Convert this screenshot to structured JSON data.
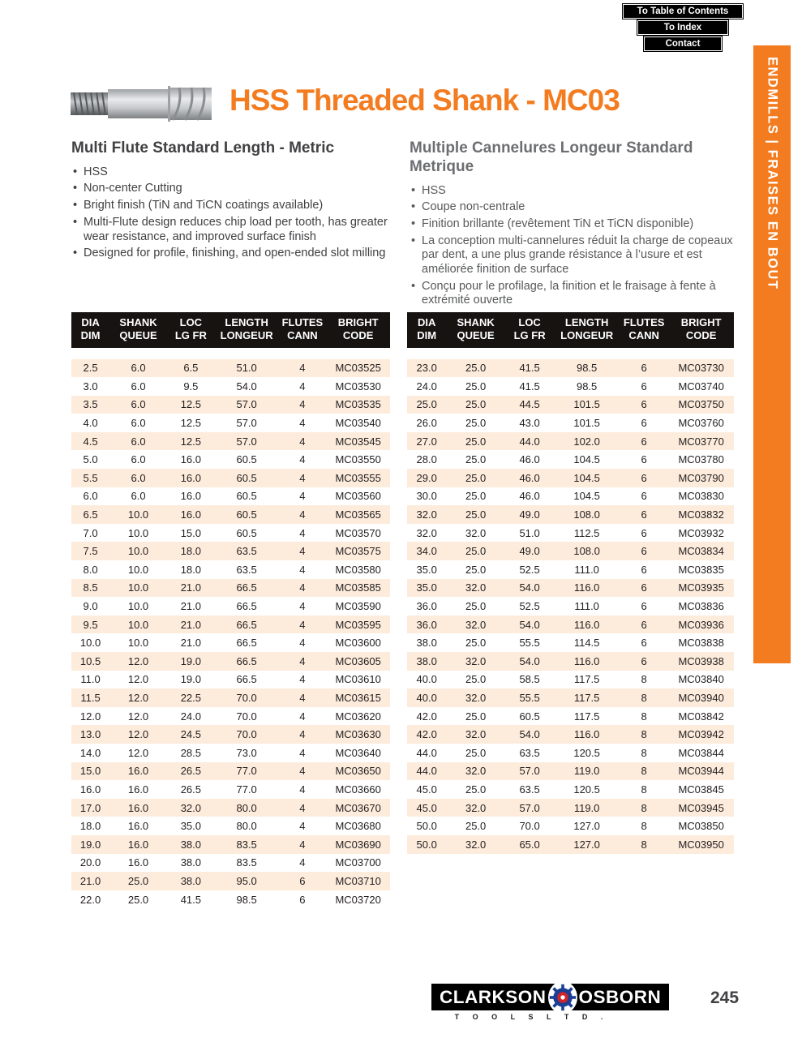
{
  "nav": {
    "buttons": [
      "To Table of Contents",
      "To Index",
      "Contact"
    ]
  },
  "sidebar": {
    "label": "ENDMILLS | FRAISES EN BOUT",
    "color": "#f47c20"
  },
  "header": {
    "title": "HSS Threaded Shank - MC03"
  },
  "sections": {
    "english": {
      "heading": "Multi Flute Standard Length - Metric",
      "bullets": [
        "HSS",
        "Non-center Cutting",
        "Bright finish (TiN and TiCN coatings available)",
        "Multi-Flute design reduces chip load per tooth, has greater wear resistance, and improved surface finish",
        "Designed for profile, finishing, and open-ended slot milling"
      ]
    },
    "french": {
      "heading": "Multiple Cannelures Longeur Standard Metrique",
      "bullets": [
        "HSS",
        "Coupe non-centrale",
        "Finition brillante (revêtement TiN et TiCN disponible)",
        "La conception multi-cannelures réduit la charge de copeaux par dent, a une plus grande résistance à l’usure et est améliorée finition de surface",
        "Conçu pour le profilage, la finition et le fraisage à fente à extrémité ouverte"
      ]
    }
  },
  "table": {
    "headers": [
      [
        "DIA",
        "DIM"
      ],
      [
        "SHANK",
        "QUEUE"
      ],
      [
        "LOC",
        "LG FR"
      ],
      [
        "LENGTH",
        "LONGEUR"
      ],
      [
        "FLUTES",
        "CANN"
      ],
      [
        "BRIGHT",
        "CODE"
      ]
    ],
    "left_rows": [
      [
        "2.5",
        "6.0",
        "6.5",
        "51.0",
        "4",
        "MC03525"
      ],
      [
        "3.0",
        "6.0",
        "9.5",
        "54.0",
        "4",
        "MC03530"
      ],
      [
        "3.5",
        "6.0",
        "12.5",
        "57.0",
        "4",
        "MC03535"
      ],
      [
        "4.0",
        "6.0",
        "12.5",
        "57.0",
        "4",
        "MC03540"
      ],
      [
        "4.5",
        "6.0",
        "12.5",
        "57.0",
        "4",
        "MC03545"
      ],
      [
        "5.0",
        "6.0",
        "16.0",
        "60.5",
        "4",
        "MC03550"
      ],
      [
        "5.5",
        "6.0",
        "16.0",
        "60.5",
        "4",
        "MC03555"
      ],
      [
        "6.0",
        "6.0",
        "16.0",
        "60.5",
        "4",
        "MC03560"
      ],
      [
        "6.5",
        "10.0",
        "16.0",
        "60.5",
        "4",
        "MC03565"
      ],
      [
        "7.0",
        "10.0",
        "15.0",
        "60.5",
        "4",
        "MC03570"
      ],
      [
        "7.5",
        "10.0",
        "18.0",
        "63.5",
        "4",
        "MC03575"
      ],
      [
        "8.0",
        "10.0",
        "18.0",
        "63.5",
        "4",
        "MC03580"
      ],
      [
        "8.5",
        "10.0",
        "21.0",
        "66.5",
        "4",
        "MC03585"
      ],
      [
        "9.0",
        "10.0",
        "21.0",
        "66.5",
        "4",
        "MC03590"
      ],
      [
        "9.5",
        "10.0",
        "21.0",
        "66.5",
        "4",
        "MC03595"
      ],
      [
        "10.0",
        "10.0",
        "21.0",
        "66.5",
        "4",
        "MC03600"
      ],
      [
        "10.5",
        "12.0",
        "19.0",
        "66.5",
        "4",
        "MC03605"
      ],
      [
        "11.0",
        "12.0",
        "19.0",
        "66.5",
        "4",
        "MC03610"
      ],
      [
        "11.5",
        "12.0",
        "22.5",
        "70.0",
        "4",
        "MC03615"
      ],
      [
        "12.0",
        "12.0",
        "24.0",
        "70.0",
        "4",
        "MC03620"
      ],
      [
        "13.0",
        "12.0",
        "24.5",
        "70.0",
        "4",
        "MC03630"
      ],
      [
        "14.0",
        "12.0",
        "28.5",
        "73.0",
        "4",
        "MC03640"
      ],
      [
        "15.0",
        "16.0",
        "26.5",
        "77.0",
        "4",
        "MC03650"
      ],
      [
        "16.0",
        "16.0",
        "26.5",
        "77.0",
        "4",
        "MC03660"
      ],
      [
        "17.0",
        "16.0",
        "32.0",
        "80.0",
        "4",
        "MC03670"
      ],
      [
        "18.0",
        "16.0",
        "35.0",
        "80.0",
        "4",
        "MC03680"
      ],
      [
        "19.0",
        "16.0",
        "38.0",
        "83.5",
        "4",
        "MC03690"
      ],
      [
        "20.0",
        "16.0",
        "38.0",
        "83.5",
        "4",
        "MC03700"
      ],
      [
        "21.0",
        "25.0",
        "38.0",
        "95.0",
        "6",
        "MC03710"
      ],
      [
        "22.0",
        "25.0",
        "41.5",
        "98.5",
        "6",
        "MC03720"
      ]
    ],
    "right_rows": [
      [
        "23.0",
        "25.0",
        "41.5",
        "98.5",
        "6",
        "MC03730"
      ],
      [
        "24.0",
        "25.0",
        "41.5",
        "98.5",
        "6",
        "MC03740"
      ],
      [
        "25.0",
        "25.0",
        "44.5",
        "101.5",
        "6",
        "MC03750"
      ],
      [
        "26.0",
        "25.0",
        "43.0",
        "101.5",
        "6",
        "MC03760"
      ],
      [
        "27.0",
        "25.0",
        "44.0",
        "102.0",
        "6",
        "MC03770"
      ],
      [
        "28.0",
        "25.0",
        "46.0",
        "104.5",
        "6",
        "MC03780"
      ],
      [
        "29.0",
        "25.0",
        "46.0",
        "104.5",
        "6",
        "MC03790"
      ],
      [
        "30.0",
        "25.0",
        "46.0",
        "104.5",
        "6",
        "MC03830"
      ],
      [
        "32.0",
        "25.0",
        "49.0",
        "108.0",
        "6",
        "MC03832"
      ],
      [
        "32.0",
        "32.0",
        "51.0",
        "112.5",
        "6",
        "MC03932"
      ],
      [
        "34.0",
        "25.0",
        "49.0",
        "108.0",
        "6",
        "MC03834"
      ],
      [
        "35.0",
        "25.0",
        "52.5",
        "111.0",
        "6",
        "MC03835"
      ],
      [
        "35.0",
        "32.0",
        "54.0",
        "116.0",
        "6",
        "MC03935"
      ],
      [
        "36.0",
        "25.0",
        "52.5",
        "111.0",
        "6",
        "MC03836"
      ],
      [
        "36.0",
        "32.0",
        "54.0",
        "116.0",
        "6",
        "MC03936"
      ],
      [
        "38.0",
        "25.0",
        "55.5",
        "114.5",
        "6",
        "MC03838"
      ],
      [
        "38.0",
        "32.0",
        "54.0",
        "116.0",
        "6",
        "MC03938"
      ],
      [
        "40.0",
        "25.0",
        "58.5",
        "117.5",
        "8",
        "MC03840"
      ],
      [
        "40.0",
        "32.0",
        "55.5",
        "117.5",
        "8",
        "MC03940"
      ],
      [
        "42.0",
        "25.0",
        "60.5",
        "117.5",
        "8",
        "MC03842"
      ],
      [
        "42.0",
        "32.0",
        "54.0",
        "116.0",
        "8",
        "MC03942"
      ],
      [
        "44.0",
        "25.0",
        "63.5",
        "120.5",
        "8",
        "MC03844"
      ],
      [
        "44.0",
        "32.0",
        "57.0",
        "119.0",
        "8",
        "MC03944"
      ],
      [
        "45.0",
        "25.0",
        "63.5",
        "120.5",
        "8",
        "MC03845"
      ],
      [
        "45.0",
        "32.0",
        "57.0",
        "119.0",
        "8",
        "MC03945"
      ],
      [
        "50.0",
        "25.0",
        "70.0",
        "127.0",
        "8",
        "MC03850"
      ],
      [
        "50.0",
        "32.0",
        "65.0",
        "127.0",
        "8",
        "MC03950"
      ]
    ]
  },
  "footer": {
    "brand_left": "CLARKSON",
    "brand_right": "OSBORN",
    "brand_sub": "T O O L S     L T D .",
    "page_number": "245"
  }
}
